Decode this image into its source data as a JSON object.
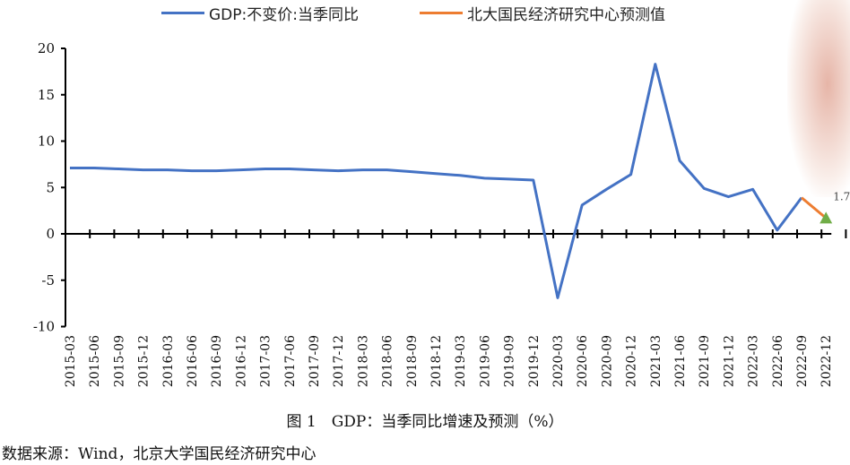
{
  "chart_data": {
    "type": "line",
    "title": "图 1　GDP：当季同比增速及预测（%）",
    "source": "数据来源：Wind，北京大学国民经济研究中心",
    "legend_position": "top",
    "ylim": [
      -10,
      20
    ],
    "yticks": [
      20,
      15,
      10,
      5,
      0,
      -5,
      -10
    ],
    "categories": [
      "2015-03",
      "2015-06",
      "2015-09",
      "2015-12",
      "2016-03",
      "2016-06",
      "2016-09",
      "2016-12",
      "2017-03",
      "2017-06",
      "2017-09",
      "2017-12",
      "2018-03",
      "2018-06",
      "2018-09",
      "2018-12",
      "2019-03",
      "2019-06",
      "2019-09",
      "2019-12",
      "2020-03",
      "2020-06",
      "2020-09",
      "2020-12",
      "2021-03",
      "2021-06",
      "2021-09",
      "2021-12",
      "2022-03",
      "2022-06",
      "2022-09",
      "2022-12"
    ],
    "series": [
      {
        "name": "GDP:不变价:当季同比",
        "color": "#4472C4",
        "values": [
          7.1,
          7.1,
          7.0,
          6.9,
          6.9,
          6.8,
          6.8,
          6.9,
          7.0,
          7.0,
          6.9,
          6.8,
          6.9,
          6.9,
          6.7,
          6.5,
          6.3,
          6.0,
          5.9,
          5.8,
          -6.9,
          3.1,
          4.8,
          6.4,
          18.3,
          7.9,
          4.9,
          4.0,
          4.8,
          0.4,
          3.9,
          null
        ]
      },
      {
        "name": "北大国民经济研究中心预测值",
        "color": "#ED7D31",
        "values": [
          null,
          null,
          null,
          null,
          null,
          null,
          null,
          null,
          null,
          null,
          null,
          null,
          null,
          null,
          null,
          null,
          null,
          null,
          null,
          null,
          null,
          null,
          null,
          null,
          null,
          null,
          null,
          null,
          null,
          null,
          3.9,
          1.7
        ]
      }
    ],
    "annotations": [
      {
        "category": "2022-12",
        "value": 1.7,
        "label": "1.7",
        "marker": "triangle",
        "color": "#70AD47"
      }
    ]
  }
}
